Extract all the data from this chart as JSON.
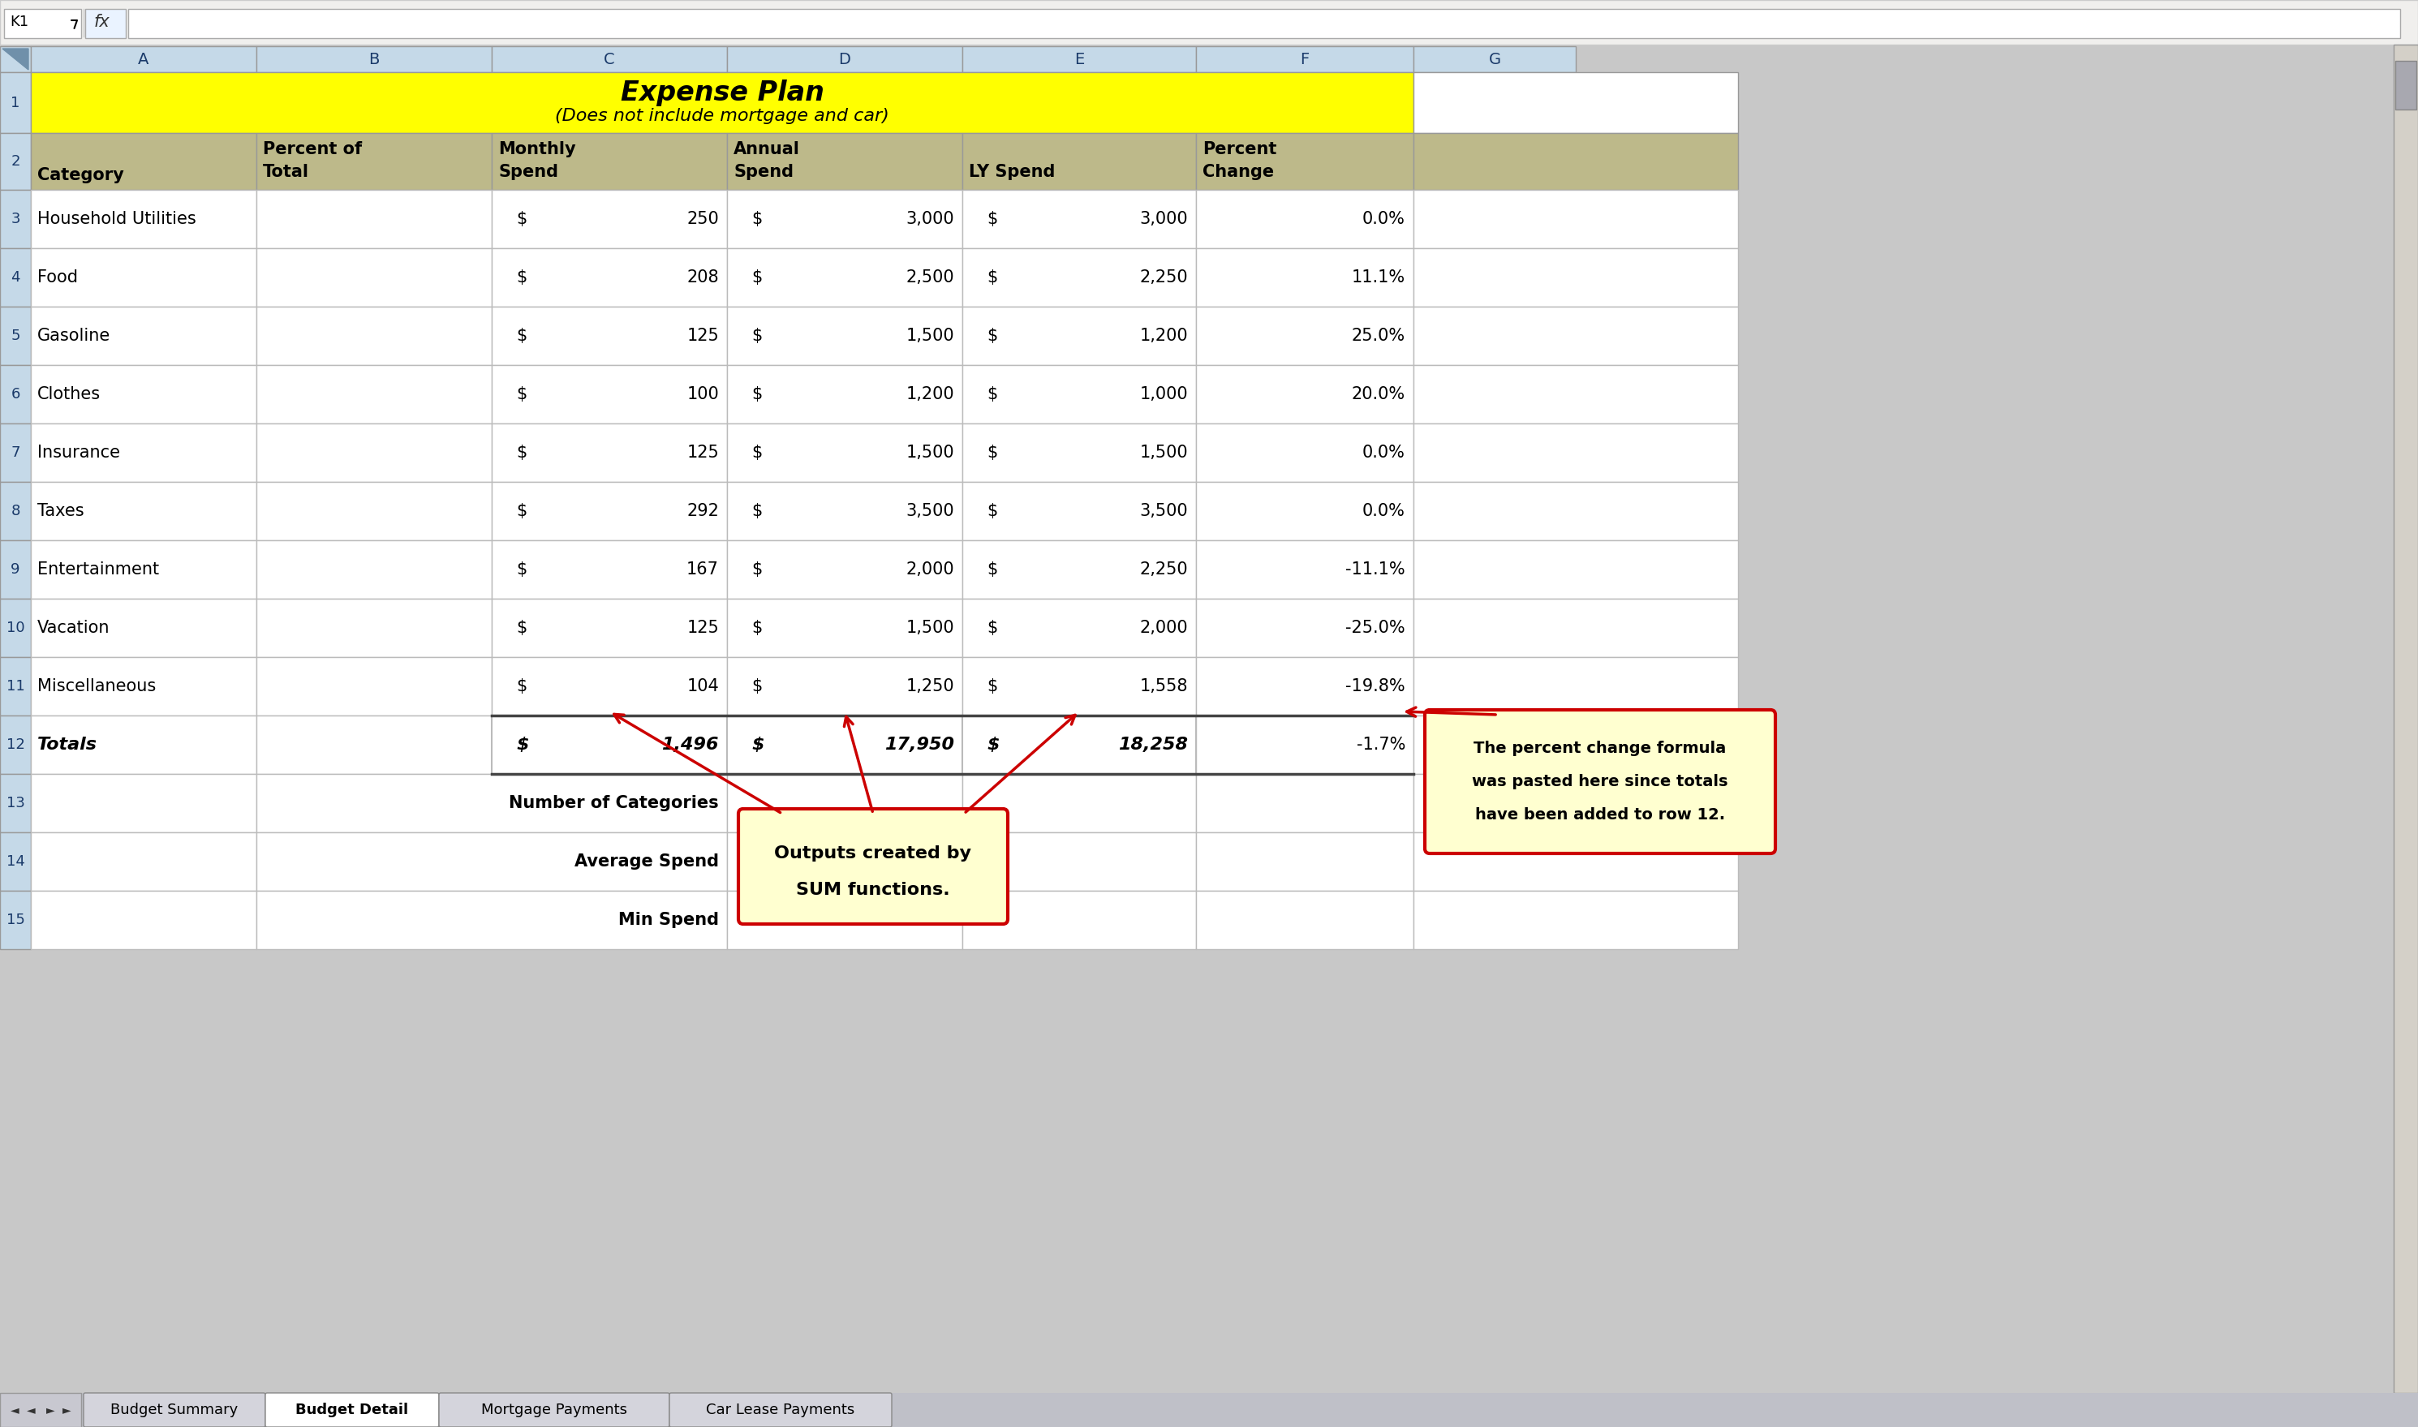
{
  "title_line1": "Expense Plan",
  "title_line2": "(Does not include mortgage and car)",
  "title_bg": "#FFFF00",
  "header_bg": "#BDB98A",
  "col_hdr_bg": "#C5D9E8",
  "row_num_bg": "#C5D9E8",
  "row_bg": "#FFFFFF",
  "grid_color": "#B0B0B0",
  "col_headers": [
    "A",
    "B",
    "C",
    "D",
    "E",
    "F",
    "G"
  ],
  "categories": [
    "Household Utilities",
    "Food",
    "Gasoline",
    "Clothes",
    "Insurance",
    "Taxes",
    "Entertainment",
    "Vacation",
    "Miscellaneous"
  ],
  "monthly_spend": [
    "250",
    "208",
    "125",
    "100",
    "125",
    "292",
    "167",
    "125",
    "104"
  ],
  "annual_spend": [
    "3,000",
    "2,500",
    "1,500",
    "1,200",
    "1,500",
    "3,500",
    "2,000",
    "1,500",
    "1,250"
  ],
  "ly_spend": [
    "3,000",
    "2,250",
    "1,200",
    "1,000",
    "1,500",
    "3,500",
    "2,250",
    "2,000",
    "1,558"
  ],
  "pct_change": [
    "0.0%",
    "11.1%",
    "25.0%",
    "20.0%",
    "0.0%",
    "0.0%",
    "-11.1%",
    "-25.0%",
    "-19.8%"
  ],
  "summary_rows": [
    "Number of Categories",
    "Average Spend",
    "Min Spend"
  ],
  "tab_names": [
    "Budget Summary",
    "Budget Detail",
    "Mortgage Payments",
    "Car Lease Payments"
  ],
  "active_tab": "Budget Detail",
  "excel_bg": "#C8C8C8",
  "cell_ref": "K1"
}
